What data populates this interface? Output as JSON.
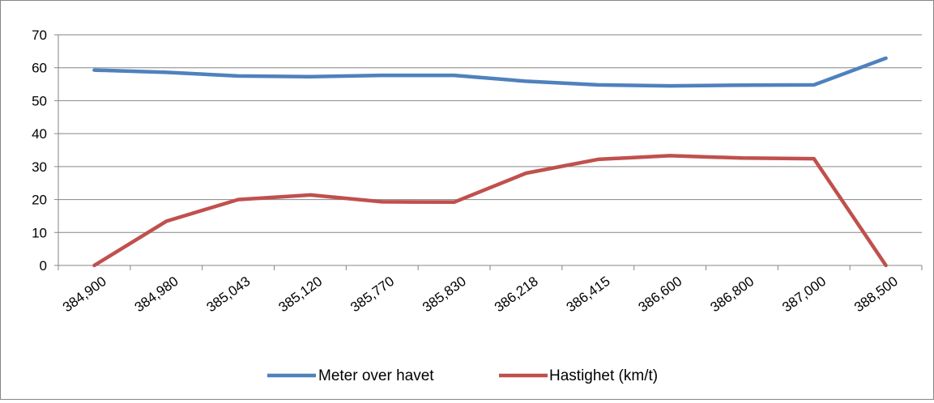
{
  "chart_data": {
    "type": "line",
    "categories": [
      "384,900",
      "384,980",
      "385,043",
      "385,120",
      "385,770",
      "385,830",
      "386,218",
      "386,415",
      "386,600",
      "386,800",
      "387,000",
      "388,500"
    ],
    "ylim": [
      0,
      70
    ],
    "yticks": [
      0,
      10,
      20,
      30,
      40,
      50,
      60,
      70
    ],
    "grid": true,
    "legend_position": "bottom",
    "series": [
      {
        "name": "Meter over havet",
        "color": "#4F81BD",
        "values": [
          59.3,
          58.6,
          57.5,
          57.3,
          57.7,
          57.7,
          55.9,
          54.8,
          54.5,
          54.7,
          54.8,
          62.9
        ]
      },
      {
        "name": "Hastighet (km/t)",
        "color": "#C0504D",
        "values": [
          0,
          13.4,
          20.0,
          21.4,
          19.3,
          19.2,
          28.0,
          32.2,
          33.3,
          32.6,
          32.4,
          0
        ]
      }
    ]
  }
}
